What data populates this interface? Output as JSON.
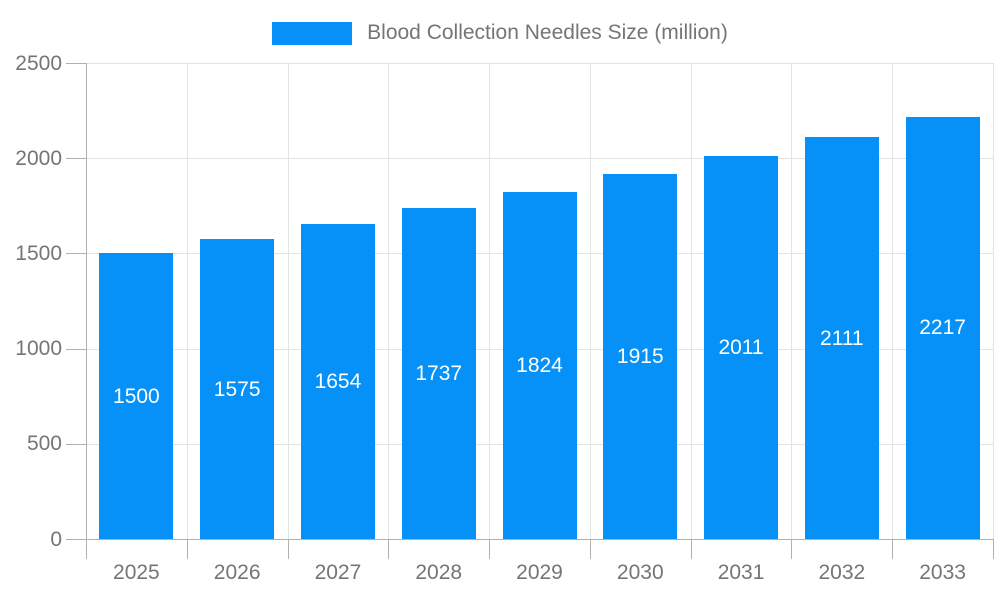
{
  "legend": {
    "label": "Blood Collection Needles Size (million)"
  },
  "chart_data": {
    "type": "bar",
    "title": "Blood Collection Needles Size (million)",
    "categories": [
      "2025",
      "2026",
      "2027",
      "2028",
      "2029",
      "2030",
      "2031",
      "2032",
      "2033"
    ],
    "values": [
      1500,
      1575,
      1654,
      1737,
      1824,
      1915,
      2011,
      2111,
      2217
    ],
    "value_labels": [
      "1500",
      "1575",
      "1654",
      "1737",
      "1824",
      "1915",
      "2011",
      "2111",
      "2217"
    ],
    "y_ticks": [
      "0",
      "500",
      "1000",
      "1500",
      "2000",
      "2500"
    ],
    "y_tick_values": [
      0,
      500,
      1000,
      1500,
      2000,
      2500
    ],
    "ylim": [
      0,
      2500
    ],
    "xlabel": "",
    "ylabel": "",
    "grid": true,
    "legend_position": "top",
    "colors": {
      "bar": "#0591f7",
      "value_text": "#ffffff",
      "axis_text": "#757575",
      "legend_text": "#757575",
      "gridline": "#e3e3e3",
      "axis_line": "#b0b0b0"
    }
  }
}
